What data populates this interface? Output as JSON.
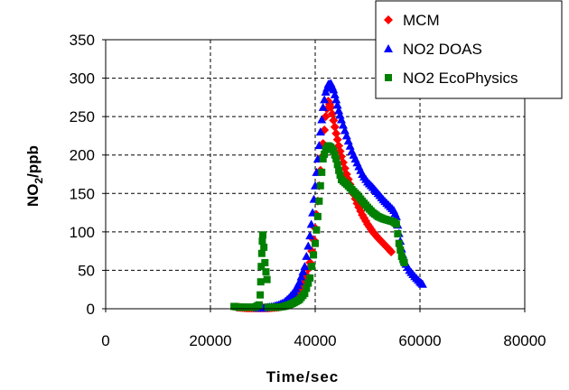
{
  "chart_data": {
    "type": "scatter",
    "xlabel": "Time/sec",
    "ylabel_main": "NO",
    "ylabel_sub": "2",
    "ylabel_tail": "/ppb",
    "xlim": [
      0,
      80000
    ],
    "ylim": [
      0,
      350
    ],
    "x_ticks": [
      0,
      20000,
      40000,
      60000,
      80000
    ],
    "y_ticks": [
      0,
      50,
      100,
      150,
      200,
      250,
      300,
      350
    ],
    "x_tick_labels": [
      "0",
      "20000",
      "40000",
      "60000",
      "80000"
    ],
    "y_tick_labels": [
      "0",
      "50",
      "100",
      "150",
      "200",
      "250",
      "300",
      "350"
    ],
    "grid": true,
    "legend_position": "top-right",
    "series": [
      {
        "name": "MCM",
        "color": "#ff0000",
        "marker": "diamond",
        "points": [
          [
            25000,
            2
          ],
          [
            27000,
            1
          ],
          [
            29000,
            1
          ],
          [
            31000,
            1
          ],
          [
            33000,
            2
          ],
          [
            35000,
            6
          ],
          [
            36000,
            12
          ],
          [
            37000,
            20
          ],
          [
            38000,
            35
          ],
          [
            39000,
            60
          ],
          [
            40000,
            105
          ],
          [
            40500,
            140
          ],
          [
            41000,
            180
          ],
          [
            41500,
            215
          ],
          [
            42000,
            250
          ],
          [
            42500,
            270
          ],
          [
            43000,
            262
          ],
          [
            43500,
            245
          ],
          [
            44000,
            228
          ],
          [
            44500,
            212
          ],
          [
            45000,
            198
          ],
          [
            46000,
            175
          ],
          [
            47000,
            155
          ],
          [
            48000,
            137
          ],
          [
            49000,
            122
          ],
          [
            50000,
            110
          ],
          [
            51000,
            100
          ],
          [
            52000,
            92
          ],
          [
            53000,
            85
          ],
          [
            54000,
            78
          ],
          [
            54500,
            74
          ]
        ]
      },
      {
        "name": "NO2 DOAS",
        "color": "#0000ff",
        "marker": "triangle",
        "points": [
          [
            29000,
            1
          ],
          [
            30000,
            1
          ],
          [
            31000,
            2
          ],
          [
            32000,
            3
          ],
          [
            33000,
            5
          ],
          [
            34000,
            8
          ],
          [
            35000,
            14
          ],
          [
            36000,
            22
          ],
          [
            37000,
            35
          ],
          [
            38000,
            55
          ],
          [
            39000,
            95
          ],
          [
            39500,
            125
          ],
          [
            40000,
            160
          ],
          [
            40500,
            195
          ],
          [
            41000,
            230
          ],
          [
            41500,
            262
          ],
          [
            42000,
            282
          ],
          [
            42500,
            292
          ],
          [
            43000,
            293
          ],
          [
            43500,
            285
          ],
          [
            44000,
            272
          ],
          [
            44500,
            258
          ],
          [
            45000,
            246
          ],
          [
            46000,
            225
          ],
          [
            47000,
            205
          ],
          [
            48000,
            190
          ],
          [
            49000,
            175
          ],
          [
            50000,
            165
          ],
          [
            51000,
            158
          ],
          [
            52000,
            150
          ],
          [
            53000,
            142
          ],
          [
            54000,
            135
          ],
          [
            55000,
            128
          ],
          [
            55500,
            120
          ],
          [
            56000,
            98
          ],
          [
            56500,
            78
          ],
          [
            57000,
            62
          ],
          [
            58000,
            50
          ],
          [
            59000,
            42
          ],
          [
            60000,
            35
          ],
          [
            60500,
            32
          ]
        ]
      },
      {
        "name": "NO2 EcoPhysics",
        "color": "#008000",
        "marker": "square",
        "points": [
          [
            24500,
            3
          ],
          [
            25500,
            2
          ],
          [
            27000,
            2
          ],
          [
            28500,
            2
          ],
          [
            29300,
            5
          ],
          [
            29500,
            18
          ],
          [
            29600,
            35
          ],
          [
            29700,
            55
          ],
          [
            29800,
            72
          ],
          [
            29900,
            88
          ],
          [
            30000,
            96
          ],
          [
            30200,
            80
          ],
          [
            30400,
            60
          ],
          [
            30600,
            48
          ],
          [
            30800,
            38
          ],
          [
            31000,
            2
          ],
          [
            32000,
            2
          ],
          [
            33000,
            2
          ],
          [
            34000,
            3
          ],
          [
            35000,
            5
          ],
          [
            36000,
            8
          ],
          [
            37000,
            12
          ],
          [
            38000,
            20
          ],
          [
            39000,
            40
          ],
          [
            40000,
            85
          ],
          [
            40500,
            120
          ],
          [
            41000,
            160
          ],
          [
            41500,
            195
          ],
          [
            42000,
            207
          ],
          [
            42500,
            212
          ],
          [
            43000,
            210
          ],
          [
            43500,
            205
          ],
          [
            44000,
            195
          ],
          [
            44500,
            180
          ],
          [
            45000,
            168
          ],
          [
            46000,
            162
          ],
          [
            47000,
            155
          ],
          [
            48000,
            148
          ],
          [
            49000,
            140
          ],
          [
            50000,
            132
          ],
          [
            51000,
            125
          ],
          [
            52000,
            120
          ],
          [
            53000,
            117
          ],
          [
            54000,
            115
          ],
          [
            55000,
            113
          ],
          [
            55500,
            110
          ],
          [
            56000,
            85
          ],
          [
            56500,
            68
          ],
          [
            57000,
            60
          ]
        ]
      }
    ]
  }
}
